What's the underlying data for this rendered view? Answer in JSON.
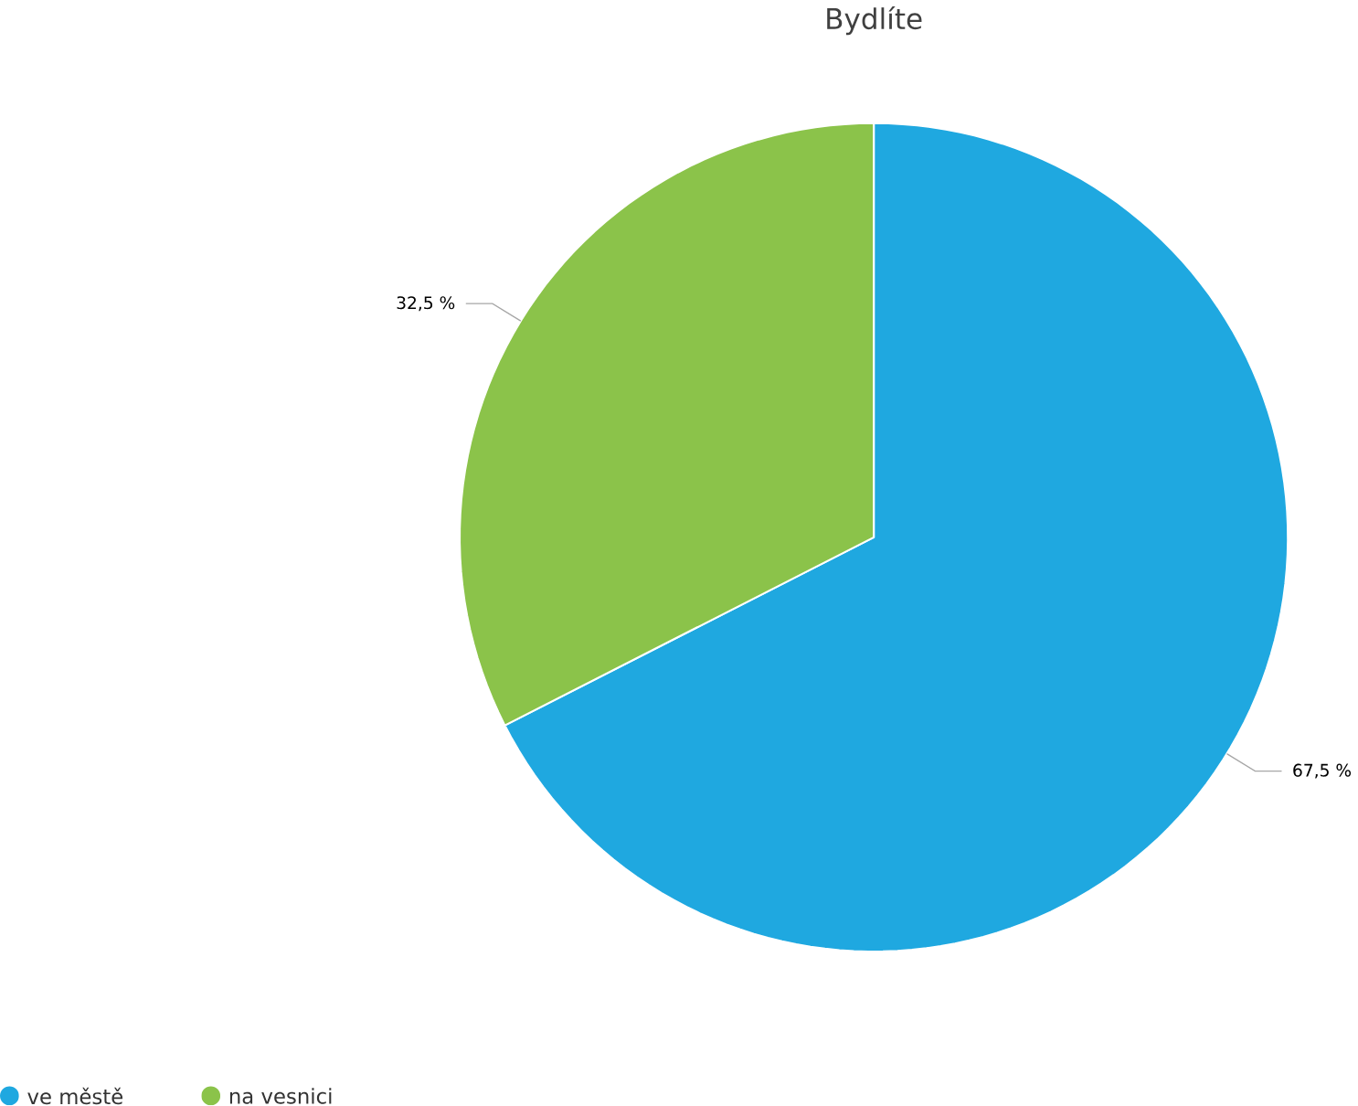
{
  "chart_data": {
    "type": "pie",
    "title": "Bydlíte",
    "categories": [
      "ve městě",
      "na vesnici"
    ],
    "values": [
      67.5,
      32.5
    ],
    "colors": [
      "#1fa8e0",
      "#8bc34a"
    ],
    "value_labels": [
      "67,5 %",
      "32,5 %"
    ],
    "legend": "bottom left"
  }
}
